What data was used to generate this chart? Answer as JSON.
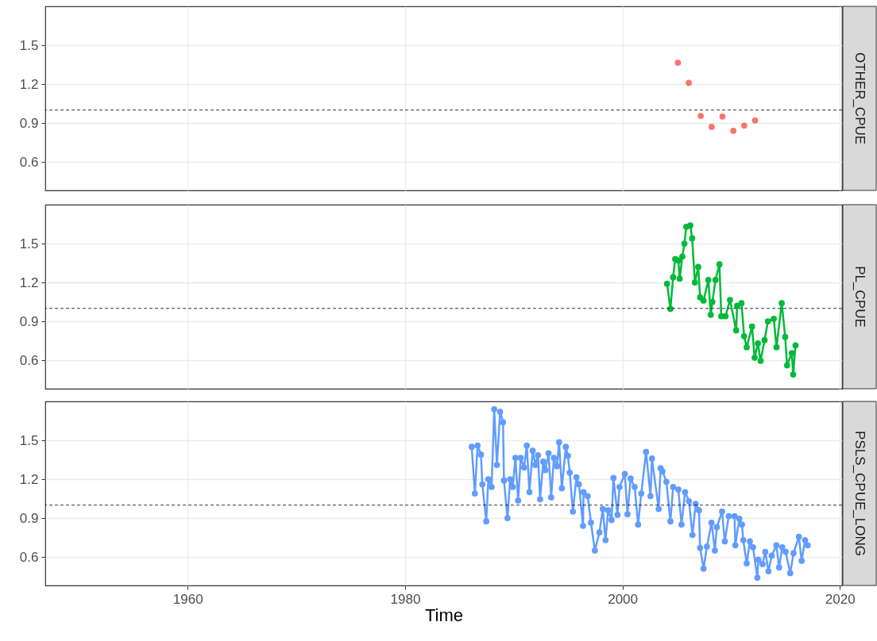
{
  "chart_data": [
    {
      "type": "scatter",
      "xlim": [
        1946.9,
        2020.2
      ],
      "xticks": [
        1960,
        1980,
        2000,
        2020
      ],
      "ylim": [
        0.38,
        1.8
      ],
      "yticks": [
        0.6,
        0.9,
        1.2,
        1.5
      ],
      "grid": true,
      "tick_labels": "y",
      "marker": "circle",
      "ref_lines": [
        {
          "axis": "y",
          "value": 1,
          "line_style": "dashed",
          "color": "#000000"
        }
      ],
      "series": [
        {
          "name": "OTHER_CPUE",
          "color": "#f8766d",
          "x": [
            2005.1,
            2006.1,
            2007.2,
            2008.2,
            2009.2,
            2010.2,
            2011.2,
            2012.2
          ],
          "values": [
            1.365,
            1.21,
            0.955,
            0.87,
            0.95,
            0.84,
            0.88,
            0.92
          ]
        }
      ]
    },
    {
      "type": "line",
      "xlim": [
        1946.9,
        2020.2
      ],
      "xticks": [
        1960,
        1980,
        2000,
        2020
      ],
      "ylim": [
        0.38,
        1.8
      ],
      "yticks": [
        0.6,
        0.9,
        1.2,
        1.5
      ],
      "grid": true,
      "tick_labels": "y",
      "marker": "circle",
      "line_style": "solid",
      "ref_lines": [
        {
          "axis": "y",
          "value": 1,
          "line_style": "dashed",
          "color": "#000000"
        }
      ],
      "series": [
        {
          "name": "PL_CPUE",
          "color": "#00ba38",
          "x": [
            2004.1,
            2004.41,
            2004.66,
            2004.85,
            2005.14,
            2005.26,
            2005.51,
            2005.7,
            2005.87,
            2006.24,
            2006.41,
            2006.66,
            2006.97,
            2007.14,
            2007.46,
            2007.9,
            2008.12,
            2008.27,
            2008.56,
            2008.92,
            2009.09,
            2009.48,
            2009.89,
            2010.46,
            2010.55,
            2010.95,
            2011.19,
            2011.43,
            2011.92,
            2012.16,
            2012.46,
            2012.71,
            2013.07,
            2013.38,
            2013.92,
            2014.17,
            2014.65,
            2014.97,
            2015.14,
            2015.58,
            2015.7,
            2015.92
          ],
          "values": [
            1.19,
            0.996,
            1.24,
            1.38,
            1.37,
            1.23,
            1.4,
            1.5,
            1.63,
            1.64,
            1.54,
            1.2,
            1.32,
            1.085,
            1.06,
            1.22,
            0.95,
            1.05,
            1.22,
            1.34,
            0.94,
            0.94,
            1.065,
            0.83,
            1.02,
            1.04,
            0.785,
            0.7,
            0.86,
            0.62,
            0.73,
            0.595,
            0.755,
            0.9,
            0.92,
            0.7,
            1.04,
            0.78,
            0.56,
            0.655,
            0.49,
            0.715
          ]
        }
      ]
    },
    {
      "type": "line",
      "xlabel": "Time",
      "xlim": [
        1946.9,
        2020.2
      ],
      "xticks": [
        1960,
        1980,
        2000,
        2020
      ],
      "ylim": [
        0.38,
        1.8
      ],
      "yticks": [
        0.6,
        0.9,
        1.2,
        1.5
      ],
      "grid": true,
      "marker": "circle",
      "line_style": "solid",
      "ref_lines": [
        {
          "axis": "y",
          "value": 1,
          "line_style": "dashed",
          "color": "#000000"
        }
      ],
      "series": [
        {
          "name": "PSLS_CPUE_LONG",
          "color": "#619cff",
          "x": [
            1986.13,
            1986.42,
            1986.67,
            1986.98,
            1987.11,
            1987.47,
            1987.66,
            1987.96,
            1988.2,
            1988.45,
            1988.74,
            1989.01,
            1989.1,
            1989.42,
            1989.67,
            1989.91,
            1990.15,
            1990.4,
            1990.64,
            1990.95,
            1991.2,
            1991.44,
            1991.74,
            1991.98,
            1992.23,
            1992.42,
            1992.71,
            1992.91,
            1993.2,
            1993.44,
            1993.69,
            1993.98,
            1994.17,
            1994.42,
            1994.79,
            1994.98,
            1995.15,
            1995.44,
            1995.76,
            1996.0,
            1996.37,
            1996.42,
            1996.8,
            1997.1,
            1997.46,
            1997.88,
            1998.19,
            1998.44,
            1998.68,
            1999.0,
            1999.17,
            1999.54,
            1999.73,
            2000.22,
            2000.46,
            2000.75,
            2001.12,
            2001.44,
            2001.73,
            2002.17,
            2002.58,
            2002.71,
            2003.33,
            2003.51,
            2003.68,
            2004.04,
            2004.41,
            2004.66,
            2005.14,
            2005.43,
            2005.76,
            2006.12,
            2006.44,
            2006.73,
            2007.04,
            2007.14,
            2007.46,
            2007.77,
            2008.19,
            2008.5,
            2008.68,
            2009.16,
            2009.41,
            2009.78,
            2010.31,
            2010.38,
            2010.75,
            2010.99,
            2011.11,
            2011.43,
            2011.72,
            2012.01,
            2012.41,
            2012.5,
            2012.89,
            2013.14,
            2013.43,
            2013.73,
            2014.16,
            2014.41,
            2014.7,
            2015.01,
            2015.43,
            2015.74,
            2016.23,
            2016.48,
            2016.8,
            2017.04
          ],
          "values": [
            1.45,
            1.09,
            1.46,
            1.39,
            1.16,
            0.875,
            1.2,
            1.14,
            1.74,
            1.31,
            1.72,
            1.64,
            1.19,
            0.9,
            1.2,
            1.14,
            1.365,
            1.035,
            1.365,
            1.29,
            1.46,
            1.1,
            1.42,
            1.31,
            1.385,
            1.045,
            1.335,
            1.27,
            1.4,
            1.06,
            1.365,
            1.3,
            1.485,
            1.13,
            1.45,
            1.38,
            1.25,
            0.95,
            1.215,
            1.16,
            0.84,
            1.1,
            1.07,
            0.865,
            0.65,
            0.79,
            0.97,
            0.73,
            0.96,
            0.885,
            1.21,
            0.925,
            1.14,
            1.24,
            0.93,
            1.205,
            1.14,
            0.85,
            1.09,
            1.41,
            1.07,
            1.36,
            0.97,
            1.285,
            1.26,
            1.18,
            0.875,
            1.14,
            1.12,
            0.85,
            1.1,
            1.03,
            0.77,
            1.01,
            0.96,
            0.67,
            0.51,
            0.68,
            0.865,
            0.65,
            0.83,
            0.95,
            0.72,
            0.915,
            0.915,
            0.69,
            0.895,
            0.85,
            0.73,
            0.55,
            0.72,
            0.675,
            0.44,
            0.58,
            0.545,
            0.64,
            0.49,
            0.61,
            0.69,
            0.52,
            0.675,
            0.64,
            0.475,
            0.63,
            0.755,
            0.57,
            0.73,
            0.69
          ]
        }
      ]
    }
  ]
}
